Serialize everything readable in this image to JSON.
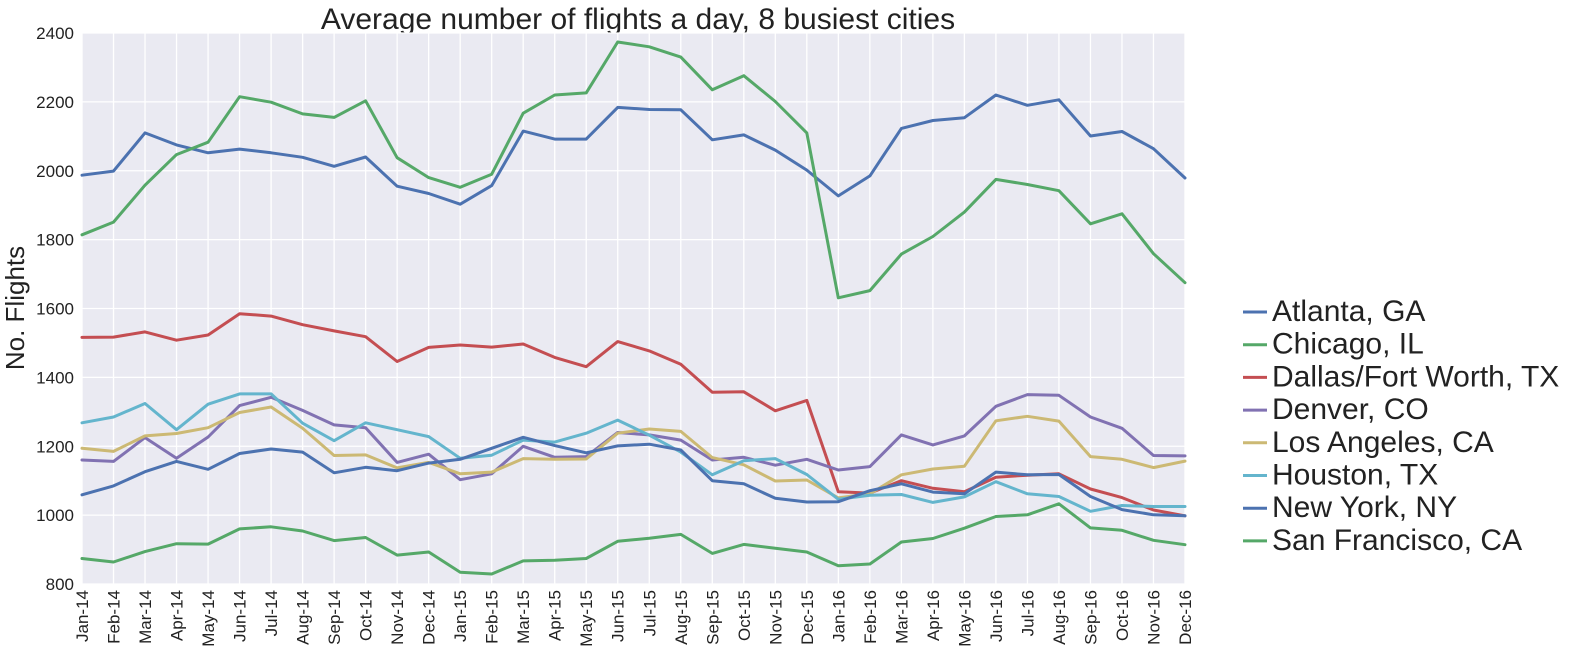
{
  "chart_data": {
    "type": "line",
    "title": "Average number of flights a day, 8 busiest cities",
    "xlabel": "",
    "ylabel": "No. Flights",
    "ylim": [
      800,
      2400
    ],
    "yticks": [
      800,
      1000,
      1200,
      1400,
      1600,
      1800,
      2000,
      2200,
      2400
    ],
    "grid": true,
    "legend_position": "right",
    "categories": [
      "Jan-14",
      "Feb-14",
      "Mar-14",
      "Apr-14",
      "May-14",
      "Jun-14",
      "Jul-14",
      "Aug-14",
      "Sep-14",
      "Oct-14",
      "Nov-14",
      "Dec-14",
      "Jan-15",
      "Feb-15",
      "Mar-15",
      "Apr-15",
      "May-15",
      "Jun-15",
      "Jul-15",
      "Aug-15",
      "Sep-15",
      "Oct-15",
      "Nov-15",
      "Dec-15",
      "Jan-16",
      "Feb-16",
      "Mar-16",
      "Apr-16",
      "May-16",
      "Jun-16",
      "Jul-16",
      "Aug-16",
      "Sep-16",
      "Oct-16",
      "Nov-16",
      "Dec-16"
    ],
    "series": [
      {
        "name": "Atlanta, GA",
        "color": "#4c72b0",
        "values": [
          1987,
          1999,
          2110,
          2075,
          2052,
          2063,
          2052,
          2039,
          2013,
          2040,
          1955,
          1934,
          1903,
          1957,
          2115,
          2092,
          2092,
          2184,
          2178,
          2177,
          2090,
          2104,
          2060,
          2002,
          1927,
          1985,
          2123,
          2146,
          2154,
          2220,
          2190,
          2206,
          2101,
          2114,
          2064,
          1979
        ]
      },
      {
        "name": "Chicago, IL",
        "color": "#55a868",
        "values": [
          1814,
          1851,
          1958,
          2047,
          2083,
          2215,
          2199,
          2165,
          2155,
          2203,
          2038,
          1980,
          1952,
          1990,
          2167,
          2220,
          2226,
          2374,
          2360,
          2330,
          2235,
          2276,
          2201,
          2110,
          1631,
          1652,
          1758,
          1809,
          1880,
          1975,
          1960,
          1942,
          1846,
          1875,
          1759,
          1675
        ]
      },
      {
        "name": "Dallas/Fort Worth, TX",
        "color": "#c44e52",
        "values": [
          1516,
          1517,
          1532,
          1508,
          1523,
          1585,
          1578,
          1553,
          1535,
          1518,
          1446,
          1487,
          1494,
          1488,
          1497,
          1458,
          1431,
          1504,
          1477,
          1438,
          1357,
          1358,
          1303,
          1333,
          1068,
          1064,
          1100,
          1078,
          1068,
          1110,
          1116,
          1120,
          1076,
          1051,
          1015,
          998
        ]
      },
      {
        "name": "Denver, CO",
        "color": "#8172b2",
        "values": [
          1160,
          1156,
          1225,
          1165,
          1227,
          1318,
          1342,
          1304,
          1262,
          1254,
          1153,
          1177,
          1103,
          1120,
          1200,
          1168,
          1170,
          1240,
          1233,
          1218,
          1160,
          1168,
          1145,
          1162,
          1131,
          1141,
          1233,
          1204,
          1230,
          1316,
          1350,
          1348,
          1285,
          1252,
          1173,
          1172
        ]
      },
      {
        "name": "Los Angeles, CA",
        "color": "#ccb974",
        "values": [
          1194,
          1185,
          1230,
          1237,
          1254,
          1298,
          1314,
          1252,
          1173,
          1175,
          1137,
          1153,
          1120,
          1125,
          1164,
          1162,
          1163,
          1238,
          1250,
          1243,
          1167,
          1146,
          1099,
          1102,
          1050,
          1062,
          1117,
          1134,
          1142,
          1274,
          1287,
          1273,
          1170,
          1162,
          1138,
          1157
        ]
      },
      {
        "name": "Houston, TX",
        "color": "#64b5cd",
        "values": [
          1268,
          1285,
          1324,
          1248,
          1322,
          1352,
          1352,
          1267,
          1216,
          1268,
          1248,
          1228,
          1165,
          1174,
          1218,
          1212,
          1238,
          1276,
          1232,
          1183,
          1117,
          1158,
          1164,
          1118,
          1046,
          1058,
          1060,
          1037,
          1053,
          1097,
          1062,
          1054,
          1011,
          1028,
          1025,
          1025
        ]
      },
      {
        "name": "New York, NY",
        "color": "#4c72b0",
        "values": [
          1059,
          1085,
          1126,
          1156,
          1133,
          1179,
          1192,
          1183,
          1123,
          1139,
          1129,
          1151,
          1162,
          1194,
          1226,
          1202,
          1181,
          1201,
          1206,
          1189,
          1100,
          1091,
          1049,
          1038,
          1039,
          1071,
          1091,
          1067,
          1062,
          1125,
          1117,
          1118,
          1054,
          1016,
          1001,
          998
        ]
      },
      {
        "name": "San Francisco, CA",
        "color": "#55a868",
        "values": [
          874,
          864,
          894,
          917,
          916,
          960,
          966,
          954,
          926,
          935,
          884,
          893,
          834,
          829,
          867,
          869,
          874,
          924,
          933,
          944,
          889,
          915,
          904,
          893,
          853,
          858,
          922,
          932,
          962,
          996,
          1001,
          1033,
          963,
          956,
          927,
          914
        ]
      }
    ]
  }
}
